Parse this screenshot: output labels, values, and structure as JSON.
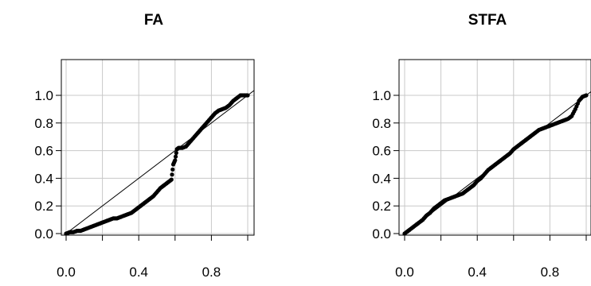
{
  "chart_data": [
    {
      "type": "scatter",
      "title": "FA",
      "xlabel": "",
      "ylabel": "",
      "xlim": [
        0,
        1
      ],
      "ylim": [
        0,
        1
      ],
      "x_ticks": [
        "0.0",
        "0.4",
        "0.8"
      ],
      "y_ticks": [
        "0.0",
        "0.2",
        "0.4",
        "0.6",
        "0.8",
        "1.0"
      ],
      "grid": true,
      "reference_line": "y=x",
      "x": [
        0.0,
        0.02,
        0.04,
        0.06,
        0.08,
        0.1,
        0.12,
        0.14,
        0.16,
        0.18,
        0.2,
        0.22,
        0.24,
        0.26,
        0.28,
        0.3,
        0.32,
        0.34,
        0.36,
        0.38,
        0.4,
        0.42,
        0.44,
        0.46,
        0.48,
        0.5,
        0.52,
        0.54,
        0.56,
        0.58,
        0.59,
        0.6,
        0.61,
        0.62,
        0.64,
        0.66,
        0.68,
        0.7,
        0.72,
        0.74,
        0.76,
        0.78,
        0.8,
        0.82,
        0.84,
        0.86,
        0.88,
        0.9,
        0.92,
        0.94,
        0.96,
        0.98,
        1.0
      ],
      "y": [
        0.0,
        0.01,
        0.01,
        0.02,
        0.02,
        0.03,
        0.04,
        0.05,
        0.06,
        0.07,
        0.08,
        0.09,
        0.1,
        0.11,
        0.11,
        0.12,
        0.13,
        0.14,
        0.15,
        0.17,
        0.19,
        0.21,
        0.23,
        0.25,
        0.27,
        0.3,
        0.33,
        0.35,
        0.37,
        0.39,
        0.5,
        0.53,
        0.61,
        0.62,
        0.62,
        0.63,
        0.66,
        0.69,
        0.72,
        0.75,
        0.78,
        0.81,
        0.84,
        0.87,
        0.89,
        0.9,
        0.91,
        0.93,
        0.96,
        0.98,
        1.0,
        1.0,
        1.0
      ]
    },
    {
      "type": "scatter",
      "title": "STFA",
      "xlabel": "",
      "ylabel": "",
      "xlim": [
        0,
        1
      ],
      "ylim": [
        0,
        1
      ],
      "x_ticks": [
        "0.0",
        "0.4",
        "0.8"
      ],
      "y_ticks": [
        "0.0",
        "0.2",
        "0.4",
        "0.6",
        "0.8",
        "1.0"
      ],
      "grid": true,
      "reference_line": "y=x",
      "x": [
        0.0,
        0.02,
        0.04,
        0.06,
        0.08,
        0.1,
        0.12,
        0.14,
        0.16,
        0.18,
        0.2,
        0.22,
        0.24,
        0.26,
        0.28,
        0.3,
        0.32,
        0.34,
        0.36,
        0.38,
        0.4,
        0.42,
        0.44,
        0.46,
        0.48,
        0.5,
        0.52,
        0.54,
        0.56,
        0.58,
        0.6,
        0.62,
        0.64,
        0.66,
        0.68,
        0.7,
        0.72,
        0.74,
        0.76,
        0.78,
        0.8,
        0.82,
        0.84,
        0.86,
        0.88,
        0.9,
        0.92,
        0.94,
        0.96,
        0.98,
        1.0
      ],
      "y": [
        0.0,
        0.02,
        0.04,
        0.06,
        0.08,
        0.1,
        0.13,
        0.15,
        0.18,
        0.2,
        0.22,
        0.24,
        0.25,
        0.26,
        0.27,
        0.28,
        0.29,
        0.31,
        0.33,
        0.35,
        0.38,
        0.4,
        0.43,
        0.46,
        0.48,
        0.5,
        0.52,
        0.54,
        0.56,
        0.58,
        0.61,
        0.63,
        0.65,
        0.67,
        0.69,
        0.71,
        0.73,
        0.75,
        0.76,
        0.77,
        0.78,
        0.79,
        0.8,
        0.81,
        0.82,
        0.83,
        0.85,
        0.9,
        0.96,
        0.99,
        1.0
      ]
    }
  ]
}
